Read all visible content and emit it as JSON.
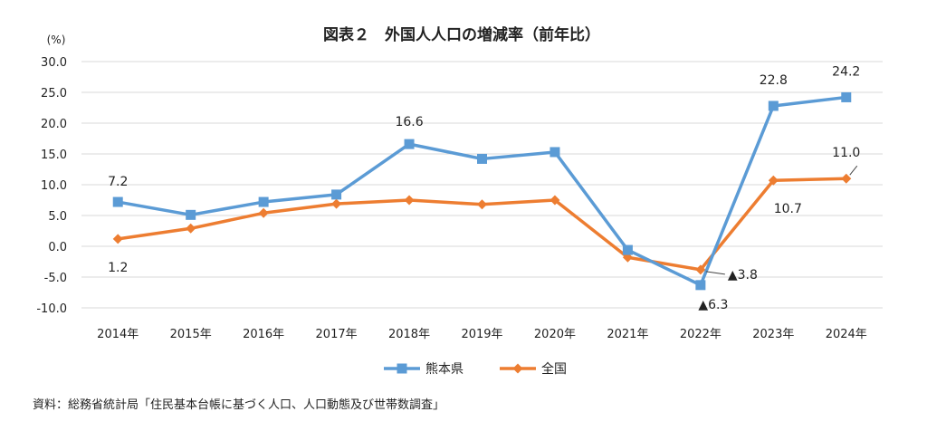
{
  "chart_data": {
    "type": "line",
    "title": "図表２　外国人人口の増減率（前年比）",
    "y_unit": "(%)",
    "categories": [
      "2014年",
      "2015年",
      "2016年",
      "2017年",
      "2018年",
      "2019年",
      "2020年",
      "2021年",
      "2022年",
      "2023年",
      "2024年"
    ],
    "ylim": [
      -10,
      30
    ],
    "yticks": [
      "30.0",
      "25.0",
      "20.0",
      "15.0",
      "10.0",
      "5.0",
      "0.0",
      "-5.0",
      "-10.0"
    ],
    "grid": true,
    "legend_position": "bottom",
    "series": [
      {
        "name": "熊本県",
        "color": "#5b9bd5",
        "marker": "square",
        "values": [
          7.2,
          5.1,
          7.2,
          8.4,
          16.6,
          14.2,
          15.3,
          -0.6,
          -6.3,
          22.8,
          24.2
        ]
      },
      {
        "name": "全国",
        "color": "#ed7d31",
        "marker": "diamond",
        "values": [
          1.2,
          2.9,
          5.4,
          6.9,
          7.5,
          6.8,
          7.5,
          -1.8,
          -3.8,
          10.7,
          11.0
        ]
      }
    ],
    "data_labels": [
      {
        "series": 0,
        "index": 0,
        "text": "7.2"
      },
      {
        "series": 0,
        "index": 4,
        "text": "16.6"
      },
      {
        "series": 0,
        "index": 8,
        "text": "▲6.3"
      },
      {
        "series": 0,
        "index": 9,
        "text": "22.8"
      },
      {
        "series": 0,
        "index": 10,
        "text": "24.2"
      },
      {
        "series": 1,
        "index": 0,
        "text": "1.2"
      },
      {
        "series": 1,
        "index": 8,
        "text": "▲3.8"
      },
      {
        "series": 1,
        "index": 9,
        "text": "10.7"
      },
      {
        "series": 1,
        "index": 10,
        "text": "11.0"
      }
    ]
  },
  "source": "資料：総務省統計局「住民基本台帳に基づく人口、人口動態及び世帯数調査」"
}
